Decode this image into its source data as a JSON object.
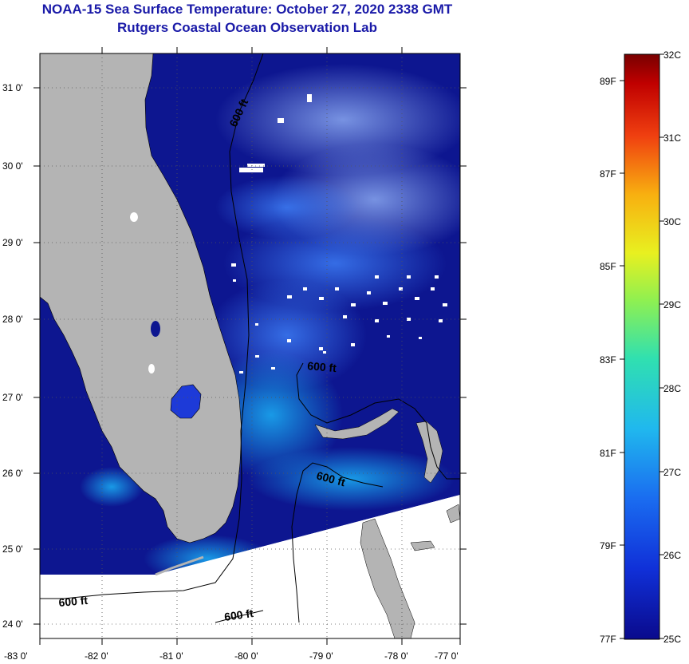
{
  "title": "NOAA-15 Sea Surface Temperature:  October 27, 2020 2338 GMT",
  "subtitle": "Rutgers Coastal Ocean Observation Lab",
  "lat_ticks": [
    "31 0'",
    "30 0'",
    "29 0'",
    "28 0'",
    "27 0'",
    "26 0'",
    "25 0'",
    "24 0'"
  ],
  "lon_ticks": [
    "-83 0'",
    "-82 0'",
    "-81 0'",
    "-80 0'",
    "-79 0'",
    "-78 0'",
    "-77 0'"
  ],
  "contour_label": "600 ft",
  "colorbar": {
    "celsius": [
      "32C",
      "31C",
      "30C",
      "29C",
      "28C",
      "27C",
      "26C",
      "25C"
    ],
    "fahrenheit": [
      "89F",
      "87F",
      "85F",
      "83F",
      "81F",
      "79F",
      "77F"
    ]
  },
  "colors": {
    "land": "#b4b4b4",
    "deep_ocean": "#0d1690",
    "title_text": "#1a1aa8"
  }
}
